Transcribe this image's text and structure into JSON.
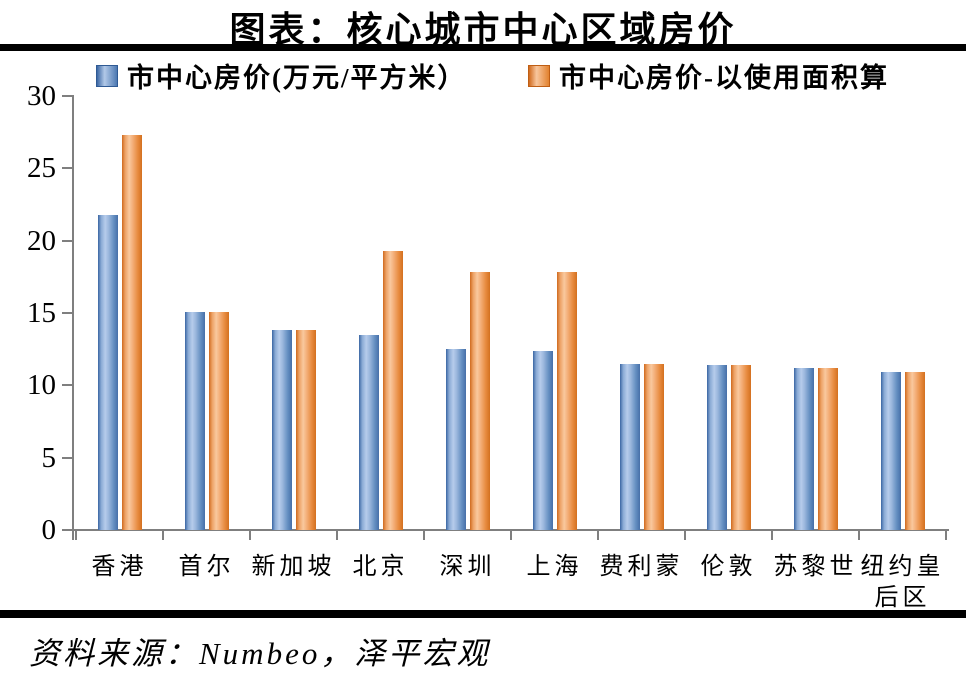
{
  "title": "图表：核心城市中心区域房价",
  "source_note": "资料来源：Numbeo，泽平宏观",
  "chart_data": {
    "type": "bar",
    "title": "图表：核心城市中心区域房价",
    "categories": [
      "香港",
      "首尔",
      "新加坡",
      "北京",
      "深圳",
      "上海",
      "费利蒙",
      "伦敦",
      "苏黎世",
      "纽约皇后区"
    ],
    "series": [
      {
        "name": "市中心房价(万元/平方米）",
        "color": "#4f81bd",
        "values": [
          21.8,
          15.1,
          13.8,
          13.5,
          12.5,
          12.4,
          11.5,
          11.4,
          11.2,
          10.9
        ]
      },
      {
        "name": "市中心房价-以使用面积算",
        "color": "#f79646",
        "values": [
          27.3,
          15.1,
          13.8,
          19.3,
          17.8,
          17.8,
          11.5,
          11.4,
          11.2,
          10.9
        ]
      }
    ],
    "xlabel": "",
    "ylabel": "",
    "ylim": [
      0,
      30
    ],
    "yticks": [
      0,
      5,
      10,
      15,
      20,
      25,
      30
    ],
    "grid": false,
    "legend_position": "top",
    "source": "资料来源：Numbeo，泽平宏观"
  },
  "colors": {
    "series1_dark": "#3a66a3",
    "series1_light": "#b6cceb",
    "series2_dark": "#d06a1d",
    "series2_light": "#f9c89e",
    "axis": "#7f7f7f",
    "divider": "#000000",
    "text": "#000000",
    "background": "#ffffff"
  }
}
